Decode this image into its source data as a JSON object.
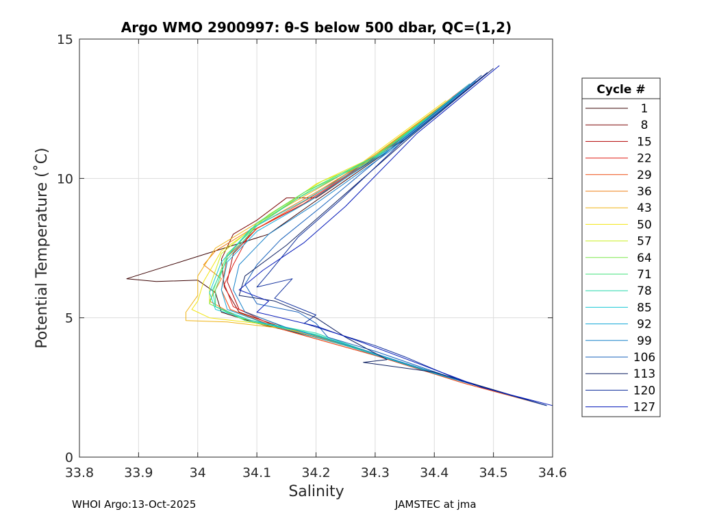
{
  "chart_data": {
    "type": "line",
    "title": "Argo WMO 2900997: θ-S below 500 dbar,  QC=(1,2)",
    "xlabel": "Salinity",
    "ylabel": "Potential Temperature (˚C)",
    "xlim": [
      33.8,
      34.6
    ],
    "ylim": [
      0,
      15
    ],
    "x_ticks": [
      "33.8",
      "33.9",
      "34",
      "34.1",
      "34.2",
      "34.3",
      "34.4",
      "34.5",
      "34.6"
    ],
    "y_ticks": [
      "0",
      "5",
      "10",
      "15"
    ],
    "grid": true,
    "legend": {
      "title": "Cycle #",
      "placement": "right",
      "entries": [
        {
          "label": "1",
          "color": "#3a0000"
        },
        {
          "label": "8",
          "color": "#7a0000"
        },
        {
          "label": "15",
          "color": "#b30000"
        },
        {
          "label": "22",
          "color": "#e01a10"
        },
        {
          "label": "29",
          "color": "#ee4a10"
        },
        {
          "label": "36",
          "color": "#ef7d10"
        },
        {
          "label": "43",
          "color": "#f0b210"
        },
        {
          "label": "50",
          "color": "#f2e510"
        },
        {
          "label": "57",
          "color": "#c9ef20"
        },
        {
          "label": "64",
          "color": "#7be84a"
        },
        {
          "label": "71",
          "color": "#3fe07a"
        },
        {
          "label": "78",
          "color": "#24d8ab"
        },
        {
          "label": "85",
          "color": "#16c8d6"
        },
        {
          "label": "92",
          "color": "#10a6d8"
        },
        {
          "label": "99",
          "color": "#1480c9"
        },
        {
          "label": "106",
          "color": "#1660bb"
        },
        {
          "label": "113",
          "color": "#0b1e60"
        },
        {
          "label": "120",
          "color": "#0a2a9a"
        },
        {
          "label": "127",
          "color": "#0015b8"
        }
      ]
    },
    "series": [
      {
        "name": "1",
        "color": "#3a0000",
        "points": [
          [
            34.49,
            13.8
          ],
          [
            34.35,
            11.4
          ],
          [
            34.2,
            9.2
          ],
          [
            34.12,
            8.0
          ],
          [
            33.88,
            6.4
          ],
          [
            33.93,
            6.3
          ],
          [
            34.0,
            6.35
          ],
          [
            34.03,
            5.9
          ],
          [
            34.04,
            5.2
          ],
          [
            34.1,
            4.8
          ],
          [
            34.2,
            4.3
          ],
          [
            34.3,
            3.7
          ],
          [
            34.4,
            3.0
          ],
          [
            34.5,
            2.4
          ],
          [
            34.59,
            1.85
          ]
        ]
      },
      {
        "name": "8",
        "color": "#7a0000",
        "points": [
          [
            34.48,
            13.7
          ],
          [
            34.34,
            11.3
          ],
          [
            34.2,
            9.3
          ],
          [
            34.15,
            9.3
          ],
          [
            34.1,
            8.5
          ],
          [
            34.06,
            8.0
          ],
          [
            34.04,
            7.1
          ],
          [
            34.045,
            6.1
          ],
          [
            34.07,
            5.2
          ],
          [
            34.15,
            4.6
          ],
          [
            34.3,
            3.7
          ],
          [
            34.45,
            2.7
          ],
          [
            34.59,
            1.85
          ]
        ]
      },
      {
        "name": "15",
        "color": "#b30000",
        "points": [
          [
            34.47,
            13.5
          ],
          [
            34.33,
            11.2
          ],
          [
            34.19,
            9.2
          ],
          [
            34.1,
            8.2
          ],
          [
            34.06,
            7.3
          ],
          [
            34.05,
            6.3
          ],
          [
            34.07,
            5.3
          ],
          [
            34.16,
            4.55
          ],
          [
            34.3,
            3.7
          ],
          [
            34.45,
            2.7
          ],
          [
            34.59,
            1.85
          ]
        ]
      },
      {
        "name": "22",
        "color": "#e01a10",
        "points": [
          [
            34.46,
            13.4
          ],
          [
            34.32,
            11.1
          ],
          [
            34.18,
            9.1
          ],
          [
            34.09,
            8.1
          ],
          [
            34.06,
            6.9
          ],
          [
            34.045,
            6.2
          ],
          [
            34.06,
            5.4
          ],
          [
            34.14,
            4.6
          ],
          [
            34.3,
            3.65
          ],
          [
            34.45,
            2.65
          ],
          [
            34.59,
            1.85
          ]
        ]
      },
      {
        "name": "29",
        "color": "#ee4a10",
        "points": [
          [
            34.45,
            13.2
          ],
          [
            34.31,
            11.0
          ],
          [
            34.19,
            9.3
          ],
          [
            34.1,
            8.2
          ],
          [
            34.05,
            7.2
          ],
          [
            34.04,
            6.0
          ],
          [
            34.055,
            5.3
          ],
          [
            34.14,
            4.6
          ],
          [
            34.3,
            3.65
          ],
          [
            34.45,
            2.65
          ],
          [
            34.59,
            1.85
          ]
        ]
      },
      {
        "name": "36",
        "color": "#ef7d10",
        "points": [
          [
            34.44,
            13.0
          ],
          [
            34.3,
            10.8
          ],
          [
            34.2,
            9.5
          ],
          [
            34.1,
            8.3
          ],
          [
            34.03,
            7.4
          ],
          [
            34.01,
            6.9
          ],
          [
            34.04,
            6.4
          ],
          [
            34.02,
            5.6
          ],
          [
            34.07,
            5.0
          ],
          [
            34.15,
            4.6
          ],
          [
            34.3,
            3.7
          ],
          [
            34.45,
            2.7
          ],
          [
            34.59,
            1.85
          ]
        ]
      },
      {
        "name": "43",
        "color": "#f0b210",
        "points": [
          [
            34.43,
            12.9
          ],
          [
            34.29,
            10.7
          ],
          [
            34.2,
            9.6
          ],
          [
            34.1,
            8.4
          ],
          [
            34.03,
            7.5
          ],
          [
            34.0,
            6.5
          ],
          [
            34.0,
            5.8
          ],
          [
            33.98,
            5.2
          ],
          [
            33.98,
            4.9
          ],
          [
            34.05,
            4.85
          ],
          [
            34.15,
            4.6
          ],
          [
            34.3,
            3.7
          ],
          [
            34.45,
            2.7
          ],
          [
            34.59,
            1.85
          ]
        ]
      },
      {
        "name": "50",
        "color": "#f2e510",
        "points": [
          [
            34.42,
            12.8
          ],
          [
            34.28,
            10.6
          ],
          [
            34.2,
            9.8
          ],
          [
            34.12,
            8.6
          ],
          [
            34.04,
            7.4
          ],
          [
            34.01,
            6.3
          ],
          [
            34.0,
            5.6
          ],
          [
            33.99,
            5.3
          ],
          [
            34.02,
            5.0
          ],
          [
            34.1,
            4.8
          ],
          [
            34.2,
            4.4
          ],
          [
            34.3,
            3.7
          ],
          [
            34.45,
            2.7
          ],
          [
            34.59,
            1.85
          ]
        ]
      },
      {
        "name": "57",
        "color": "#c9ef20",
        "points": [
          [
            34.42,
            12.7
          ],
          [
            34.28,
            10.5
          ],
          [
            34.21,
            9.9
          ],
          [
            34.12,
            8.7
          ],
          [
            34.04,
            7.3
          ],
          [
            34.02,
            6.1
          ],
          [
            34.02,
            5.5
          ],
          [
            34.07,
            5.0
          ],
          [
            34.16,
            4.6
          ],
          [
            34.3,
            3.7
          ],
          [
            34.45,
            2.7
          ],
          [
            34.59,
            1.85
          ]
        ]
      },
      {
        "name": "64",
        "color": "#7be84a",
        "points": [
          [
            34.43,
            12.8
          ],
          [
            34.29,
            10.6
          ],
          [
            34.2,
            9.7
          ],
          [
            34.11,
            8.5
          ],
          [
            34.05,
            7.3
          ],
          [
            34.03,
            6.2
          ],
          [
            34.02,
            5.5
          ],
          [
            34.07,
            5.0
          ],
          [
            34.17,
            4.55
          ],
          [
            34.3,
            3.7
          ],
          [
            34.45,
            2.7
          ],
          [
            34.59,
            1.85
          ]
        ]
      },
      {
        "name": "71",
        "color": "#3fe07a",
        "points": [
          [
            34.44,
            13.0
          ],
          [
            34.3,
            10.8
          ],
          [
            34.18,
            9.5
          ],
          [
            34.1,
            8.4
          ],
          [
            34.05,
            7.2
          ],
          [
            34.03,
            6.0
          ],
          [
            34.03,
            5.4
          ],
          [
            34.08,
            4.9
          ],
          [
            34.18,
            4.5
          ],
          [
            34.3,
            3.7
          ],
          [
            34.45,
            2.7
          ],
          [
            34.59,
            1.85
          ]
        ]
      },
      {
        "name": "78",
        "color": "#24d8ab",
        "points": [
          [
            34.45,
            13.2
          ],
          [
            34.31,
            10.9
          ],
          [
            34.17,
            9.3
          ],
          [
            34.1,
            8.3
          ],
          [
            34.05,
            7.1
          ],
          [
            34.025,
            6.0
          ],
          [
            34.03,
            5.4
          ],
          [
            34.09,
            4.9
          ],
          [
            34.2,
            4.45
          ],
          [
            34.3,
            3.7
          ],
          [
            34.45,
            2.7
          ],
          [
            34.59,
            1.85
          ]
        ]
      },
      {
        "name": "85",
        "color": "#16c8d6",
        "points": [
          [
            34.46,
            13.4
          ],
          [
            34.32,
            11.0
          ],
          [
            34.18,
            9.2
          ],
          [
            34.09,
            8.2
          ],
          [
            34.04,
            7.0
          ],
          [
            34.02,
            5.9
          ],
          [
            34.03,
            5.3
          ],
          [
            34.1,
            4.85
          ],
          [
            34.2,
            4.4
          ],
          [
            34.3,
            3.7
          ],
          [
            34.45,
            2.7
          ],
          [
            34.59,
            1.85
          ]
        ]
      },
      {
        "name": "92",
        "color": "#10a6d8",
        "points": [
          [
            34.47,
            13.5
          ],
          [
            34.33,
            11.1
          ],
          [
            34.19,
            9.2
          ],
          [
            34.1,
            8.1
          ],
          [
            34.05,
            7.0
          ],
          [
            34.04,
            6.0
          ],
          [
            34.05,
            5.3
          ],
          [
            34.12,
            4.75
          ],
          [
            34.25,
            4.0
          ],
          [
            34.4,
            3.0
          ],
          [
            34.59,
            1.85
          ]
        ]
      },
      {
        "name": "99",
        "color": "#1480c9",
        "points": [
          [
            34.48,
            13.6
          ],
          [
            34.34,
            11.2
          ],
          [
            34.2,
            9.1
          ],
          [
            34.12,
            8.0
          ],
          [
            34.07,
            6.9
          ],
          [
            34.06,
            6.0
          ],
          [
            34.08,
            5.2
          ],
          [
            34.15,
            4.65
          ],
          [
            34.28,
            3.85
          ],
          [
            34.42,
            2.9
          ],
          [
            34.59,
            1.85
          ]
        ]
      },
      {
        "name": "106",
        "color": "#1660bb",
        "points": [
          [
            34.48,
            13.7
          ],
          [
            34.34,
            11.3
          ],
          [
            34.21,
            9.0
          ],
          [
            34.14,
            7.8
          ],
          [
            34.1,
            6.9
          ],
          [
            34.08,
            6.2
          ],
          [
            34.1,
            5.5
          ],
          [
            34.17,
            5.2
          ],
          [
            34.2,
            4.8
          ],
          [
            34.22,
            4.3
          ],
          [
            34.3,
            3.8
          ],
          [
            34.45,
            2.7
          ],
          [
            34.59,
            1.85
          ]
        ]
      },
      {
        "name": "113",
        "color": "#0b1e60",
        "points": [
          [
            34.5,
            13.95
          ],
          [
            34.36,
            11.5
          ],
          [
            34.22,
            8.9
          ],
          [
            34.15,
            7.6
          ],
          [
            34.08,
            6.5
          ],
          [
            34.07,
            5.8
          ],
          [
            34.13,
            5.6
          ],
          [
            34.2,
            5.0
          ],
          [
            34.25,
            4.3
          ],
          [
            34.32,
            3.5
          ],
          [
            34.28,
            3.4
          ],
          [
            34.4,
            3.05
          ],
          [
            34.59,
            1.85
          ]
        ]
      },
      {
        "name": "120",
        "color": "#0a2a9a",
        "points": [
          [
            34.49,
            13.8
          ],
          [
            34.35,
            11.4
          ],
          [
            34.24,
            9.2
          ],
          [
            34.17,
            7.9
          ],
          [
            34.12,
            6.6
          ],
          [
            34.1,
            6.1
          ],
          [
            34.16,
            6.4
          ],
          [
            34.13,
            5.7
          ],
          [
            34.2,
            5.1
          ],
          [
            34.18,
            4.8
          ],
          [
            34.3,
            4.0
          ],
          [
            34.35,
            3.6
          ],
          [
            34.45,
            2.7
          ],
          [
            34.59,
            1.85
          ]
        ]
      },
      {
        "name": "127",
        "color": "#0015b8",
        "points": [
          [
            34.51,
            14.05
          ],
          [
            34.37,
            11.6
          ],
          [
            34.25,
            9.0
          ],
          [
            34.18,
            7.7
          ],
          [
            34.11,
            6.7
          ],
          [
            34.07,
            6.0
          ],
          [
            34.12,
            5.6
          ],
          [
            34.1,
            5.2
          ],
          [
            34.2,
            4.7
          ],
          [
            34.28,
            4.1
          ],
          [
            34.38,
            3.3
          ],
          [
            34.48,
            2.5
          ],
          [
            34.6,
            1.85
          ]
        ]
      }
    ]
  },
  "footer": {
    "left": "WHOI Argo:13-Oct-2025",
    "right": "JAMSTEC at jma"
  }
}
